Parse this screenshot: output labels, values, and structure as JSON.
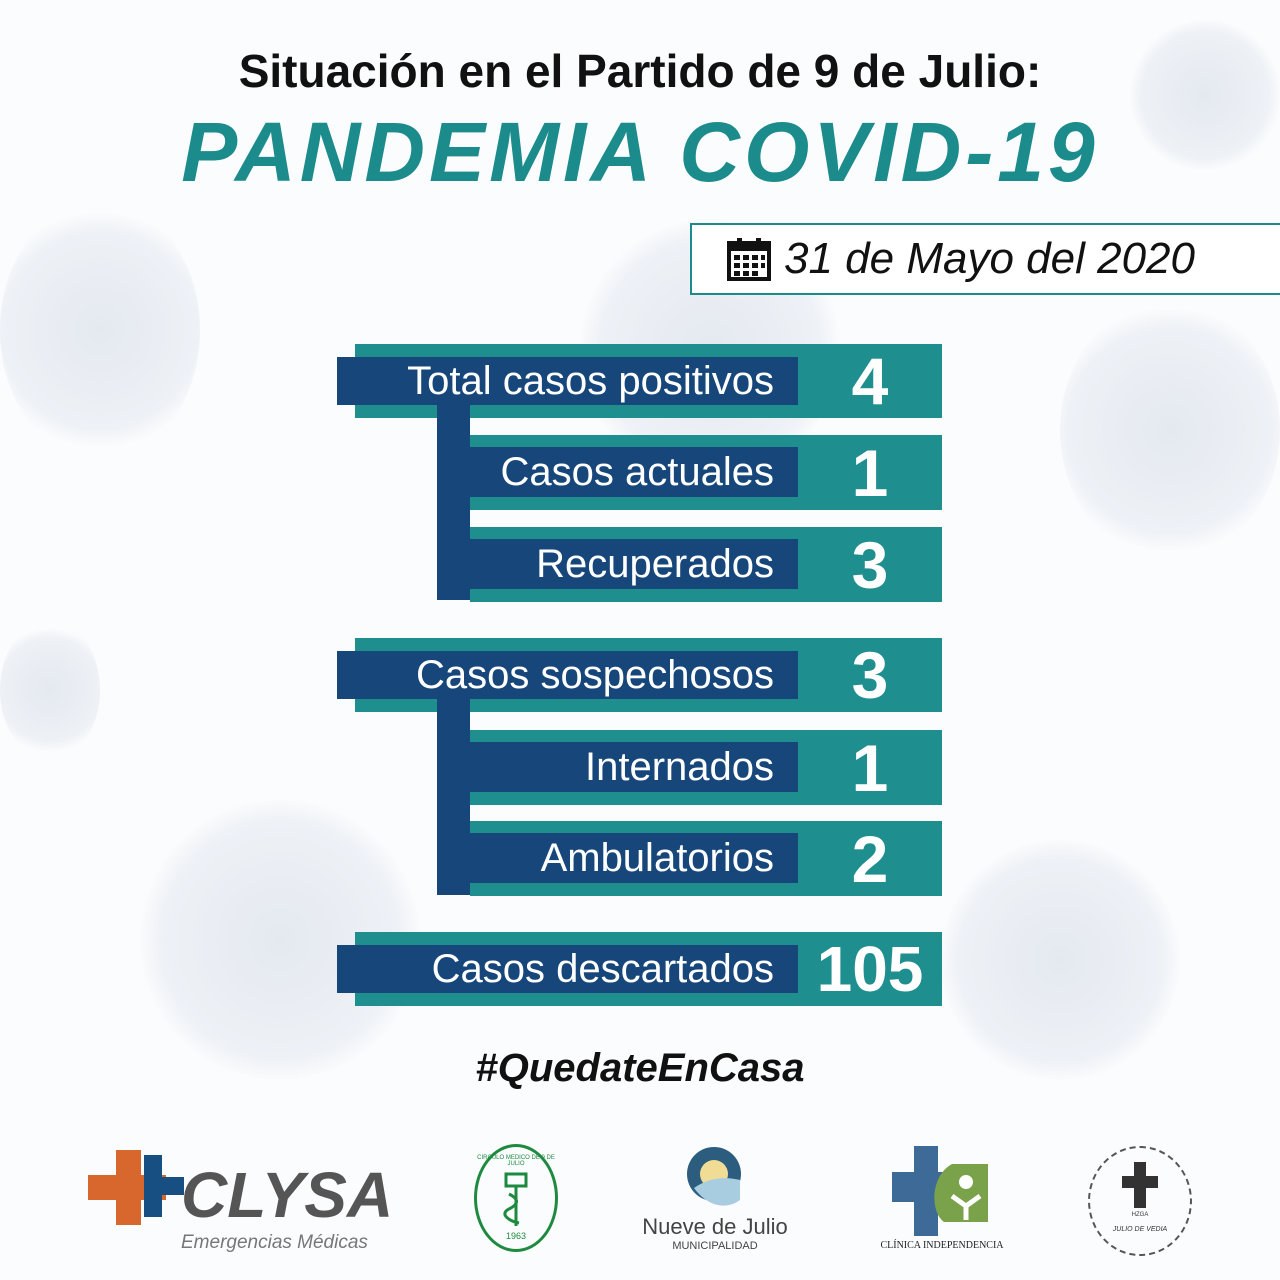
{
  "header": {
    "title": "Situación en el Partido de 9 de Julio:",
    "subtitle": "PANDEMIA COVID-19"
  },
  "date": {
    "icon": "calendar-icon",
    "text": "31 de Mayo del 2020"
  },
  "groups": [
    {
      "main": {
        "label": "Total casos positivos",
        "value": "4"
      },
      "sub": [
        {
          "label": "Casos actuales",
          "value": "1"
        },
        {
          "label": "Recuperados",
          "value": "3"
        }
      ]
    },
    {
      "main": {
        "label": "Casos sospechosos",
        "value": "3"
      },
      "sub": [
        {
          "label": "Internados",
          "value": "1"
        },
        {
          "label": "Ambulatorios",
          "value": "2"
        }
      ]
    }
  ],
  "discarded": {
    "label": "Casos descartados",
    "value": "105"
  },
  "hashtag": "#QuedateEnCasa",
  "logos": {
    "clysa": {
      "name": "CLYSA",
      "tagline": "Emergencias Médicas"
    },
    "circulo": {
      "year": "1963",
      "ring": "CIRCULO MEDICO DE 9 DE JULIO"
    },
    "municipalidad": {
      "name": "Nueve de Julio",
      "sub": "MUNICIPALIDAD"
    },
    "clinica": {
      "name": "CLÍNICA INDEPENDENCIA"
    },
    "hzga": {
      "name": "HZGA",
      "sub": "JULIO DE VEDIA"
    }
  },
  "colors": {
    "teal": "#1f8e8f",
    "navy": "#17477a"
  }
}
